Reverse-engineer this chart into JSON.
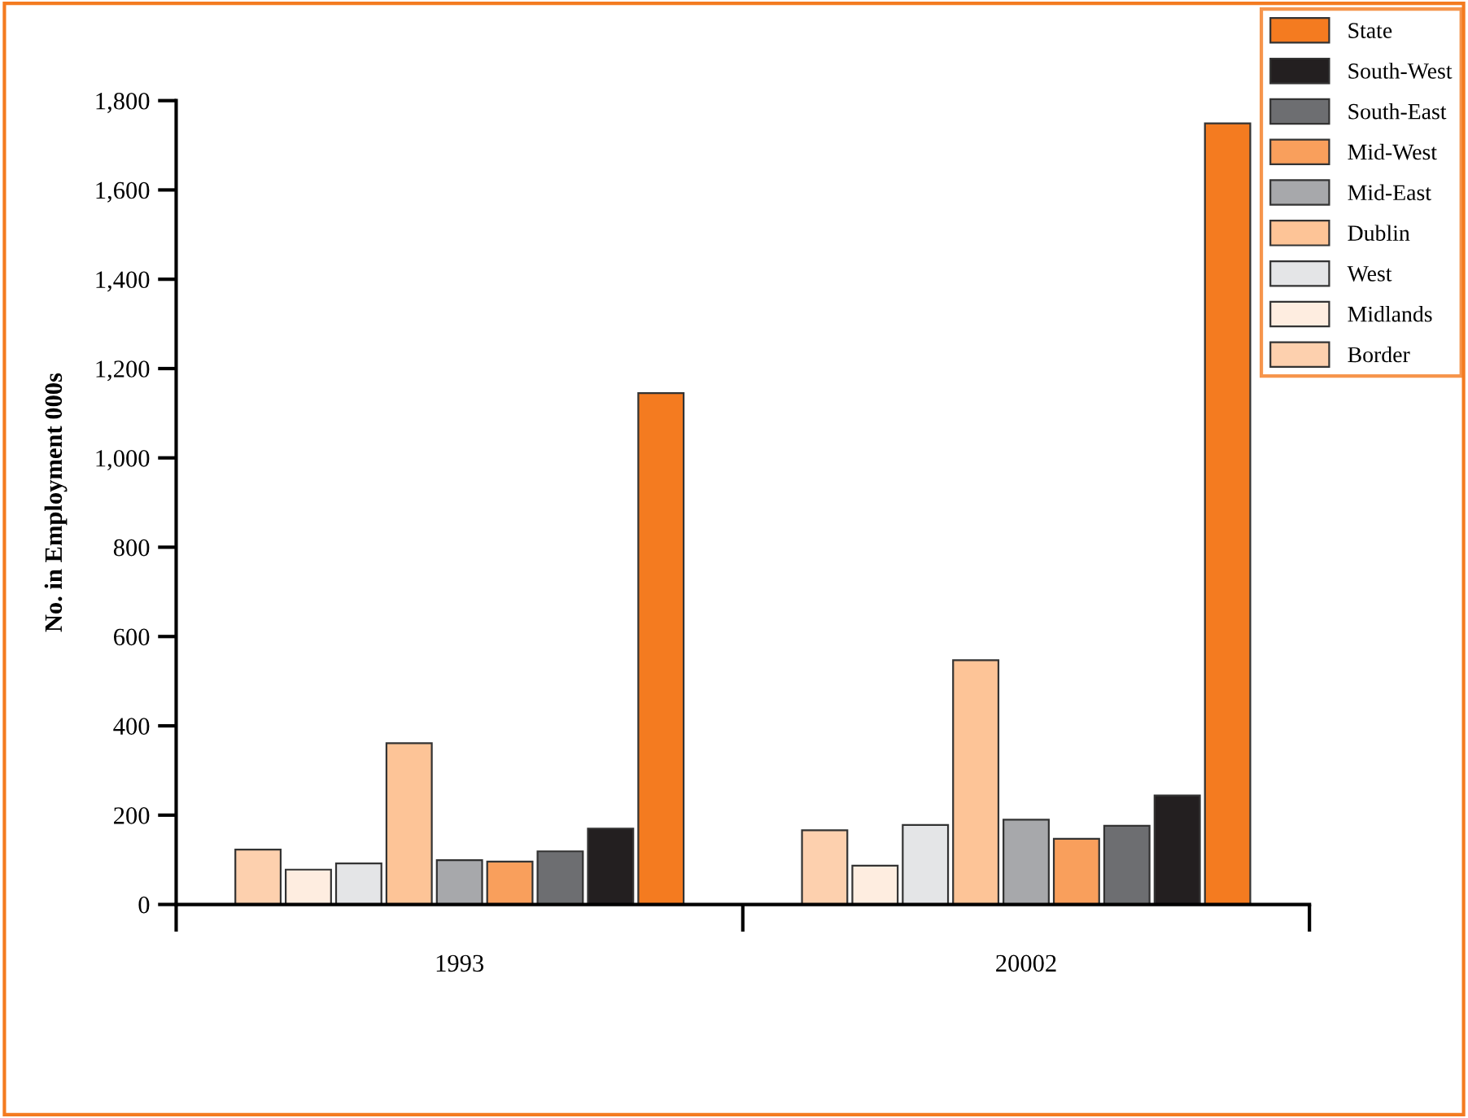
{
  "chart_data": {
    "type": "bar",
    "ylabel": "No. in Employment 000s",
    "categories": [
      "1993",
      "20002"
    ],
    "series": [
      {
        "name": "Border",
        "color": "#fdd0ae",
        "values": [
          123,
          166
        ]
      },
      {
        "name": "Midlands",
        "color": "#feede0",
        "values": [
          78,
          87
        ]
      },
      {
        "name": "West",
        "color": "#e4e5e7",
        "values": [
          92,
          178
        ]
      },
      {
        "name": "Dublin",
        "color": "#fdc497",
        "values": [
          361,
          547
        ]
      },
      {
        "name": "Mid-East",
        "color": "#a7a8ab",
        "values": [
          99,
          190
        ]
      },
      {
        "name": "Mid-West",
        "color": "#f99f5c",
        "values": [
          96,
          147
        ]
      },
      {
        "name": "South-East",
        "color": "#6d6e71",
        "values": [
          119,
          176
        ]
      },
      {
        "name": "South-West",
        "color": "#231f20",
        "values": [
          170,
          244
        ]
      },
      {
        "name": "State",
        "color": "#f47b20",
        "values": [
          1145,
          1749
        ]
      }
    ],
    "ylim": [
      0,
      1800
    ],
    "yticks": [
      0,
      {
        "value": 200,
        "label": "200"
      },
      {
        "value": 400,
        "label": "400"
      },
      {
        "value": 600,
        "label": "600"
      },
      {
        "value": 800,
        "label": "800"
      },
      {
        "value": 1000,
        "label": "1,000"
      },
      {
        "value": 1200,
        "label": "1,200"
      },
      {
        "value": 1400,
        "label": "1,400"
      },
      {
        "value": 1600,
        "label": "1,600"
      },
      {
        "value": 1800,
        "label": "1,800"
      }
    ],
    "grid": false,
    "legend": "top right"
  }
}
